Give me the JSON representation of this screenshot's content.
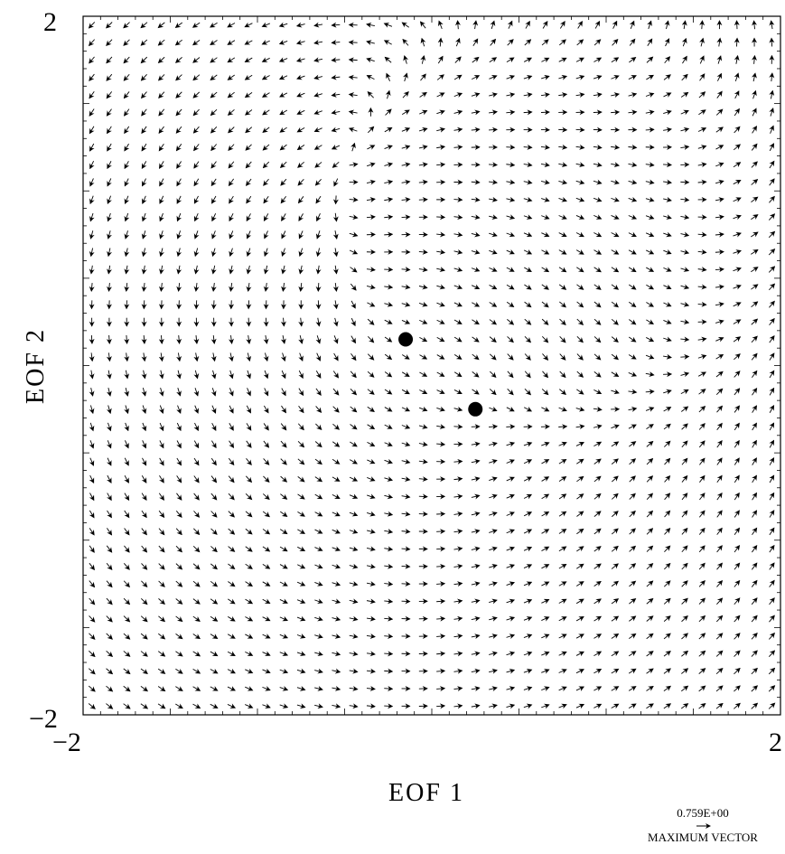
{
  "chart_data": {
    "type": "vector-field",
    "xlabel": "EOF 1",
    "ylabel": "EOF 2",
    "xlim": [
      -2,
      2
    ],
    "ylim": [
      -2,
      2
    ],
    "x_tick_labels": [
      "−2",
      "2"
    ],
    "y_tick_labels": [
      "2",
      "−2"
    ],
    "grid": false,
    "field": {
      "grid_points_per_axis": 40,
      "repeller": [
        -0.35,
        0.27
      ],
      "attractor": [
        0.25,
        -0.23
      ],
      "rotation_strength": 0.35
    },
    "fixed_points": [
      {
        "x": -0.15,
        "y": 0.15
      },
      {
        "x": 0.25,
        "y": -0.25
      }
    ],
    "legend": {
      "value": "0.759E+00",
      "label": "MAXIMUM VECTOR",
      "max_magnitude": 0.759
    }
  }
}
